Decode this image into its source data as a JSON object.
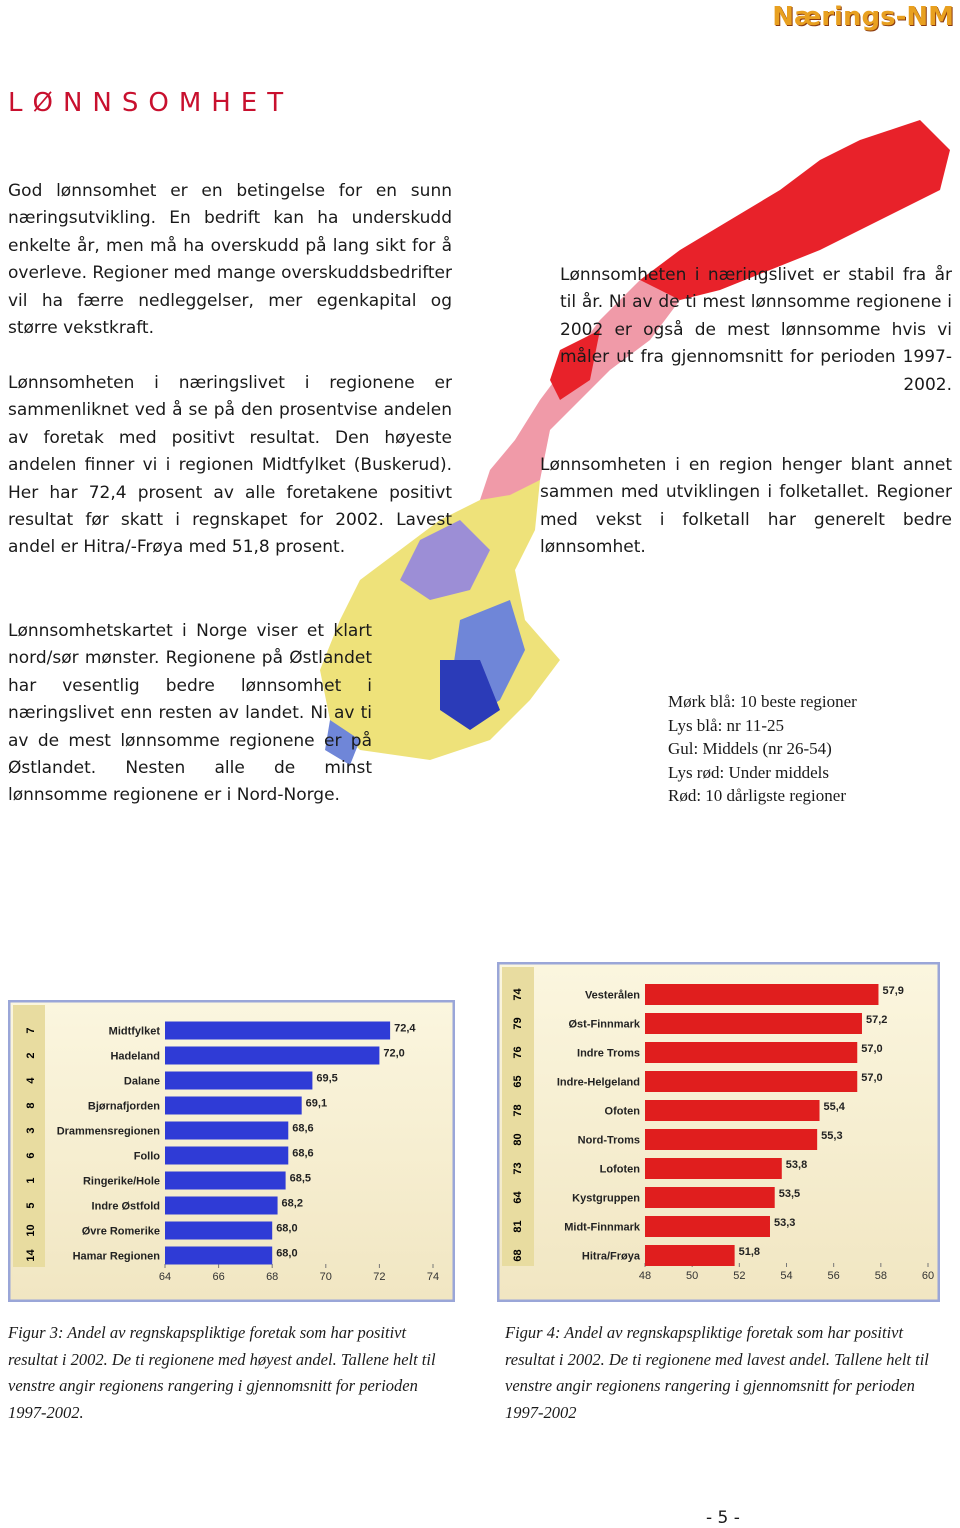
{
  "header": {
    "brand": "Nærings-NM",
    "title": "LØNNSOMHET"
  },
  "left_text": [
    "God lønnsomhet er en betingelse for en sunn næringsutvikling. En bedrift kan ha underskudd enkelte år, men må ha overskudd på lang sikt for å overleve. Regioner med mange overskuddsbedrifter vil ha færre nedleggelser, mer egenkapital og større vekstkraft.",
    "Lønnsomheten i næringslivet i regionene er sammenliknet ved å se på den prosentvise andelen av foretak med positivt resultat. Den høyeste andelen finner vi i regionen Midtfylket (Buskerud). Her har 72,4 prosent av alle foretakene positivt resultat før skatt i regnskapet for 2002. Lavest andel er Hitra/-Frøya med 51,8 prosent.",
    "Lønnsomhetskartet i Norge viser et klart nord/sør mønster. Regionene på Østlandet har vesentlig bedre lønnsomhet i næringslivet enn resten av landet. Ni av ti av de mest lønnsomme regionene er på Østlandet. Nesten alle de minst lønnsomme regionene er i Nord-Norge."
  ],
  "right_text": [
    "Lønnsomheten i næringslivet er stabil fra år til år. Ni av de ti mest lønnsomme regionene i 2002 er også de mest lønnsomme hvis vi måler ut fra gjennomsnitt for perioden 1997-2002.",
    "Lønnsomheten i en region henger blant annet sammen med utviklingen i folketallet. Regioner med vekst i folketall har generelt bedre lønnsomhet."
  ],
  "map_legend": [
    "Mørk blå: 10 beste regioner",
    "Lys blå: nr 11-25",
    "Gul: Middels (nr 26-54)",
    "Lys rød: Under middels",
    "Rød: 10 dårligste regioner"
  ],
  "chart_data": [
    {
      "type": "hbar",
      "color": "#2f3bd6",
      "ranks": [
        7,
        2,
        4,
        8,
        3,
        6,
        1,
        5,
        10,
        14
      ],
      "categories": [
        "Midtfylket",
        "Hadeland",
        "Dalane",
        "Bjørnafjorden",
        "Drammensregionen",
        "Follo",
        "Ringerike/Hole",
        "Indre Østfold",
        "Øvre Romerike",
        "Hamar Regionen"
      ],
      "values": [
        72.4,
        72.0,
        69.5,
        69.1,
        68.6,
        68.6,
        68.5,
        68.2,
        68.0,
        68.0
      ],
      "value_labels": [
        "72,4",
        "72,0",
        "69,5",
        "69,1",
        "68,6",
        "68,6",
        "68,5",
        "68,2",
        "68,0",
        "68,0"
      ],
      "xlim": [
        64,
        74
      ],
      "xticks": [
        64,
        66,
        68,
        70,
        72,
        74
      ]
    },
    {
      "type": "hbar",
      "color": "#e01e1e",
      "ranks": [
        74,
        79,
        76,
        65,
        78,
        80,
        73,
        64,
        81,
        68
      ],
      "categories": [
        "Vesterålen",
        "Øst-Finnmark",
        "Indre Troms",
        "Indre-Helgeland",
        "Ofoten",
        "Nord-Troms",
        "Lofoten",
        "Kystgruppen",
        "Midt-Finnmark",
        "Hitra/Frøya"
      ],
      "values": [
        57.9,
        57.2,
        57.0,
        57.0,
        55.4,
        55.3,
        53.8,
        53.5,
        53.3,
        51.8
      ],
      "value_labels": [
        "57,9",
        "57,2",
        "57,0",
        "57,0",
        "55,4",
        "55,3",
        "53,8",
        "53,5",
        "53,3",
        "51,8"
      ],
      "xlim": [
        48,
        60
      ],
      "xticks": [
        48,
        50,
        52,
        54,
        56,
        58,
        60
      ]
    }
  ],
  "captions": [
    "Figur 3: Andel av regnskapspliktige foretak som har positivt resultat i 2002. De ti regionene med høyest andel. Tallene helt til venstre angir regionens rangering i gjennomsnitt for perioden 1997-2002.",
    "Figur 4: Andel av regnskapspliktige foretak som har positivt resultat i 2002. De ti regionene med lavest andel. Tallene helt til venstre angir regionens rangering i gjennomsnitt for perioden 1997-2002"
  ],
  "page_number": "- 5 -"
}
